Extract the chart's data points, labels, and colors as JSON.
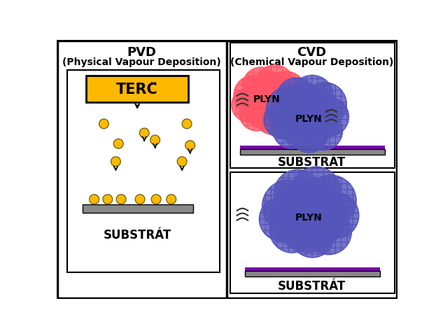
{
  "pvd_title": "PVD",
  "pvd_subtitle": "(Physical Vapour Deposition)",
  "cvd_title": "CVD",
  "cvd_subtitle": "(Chemical Vapour Deposition)",
  "terc_label": "TERČ",
  "substrat_label": "SUBSTRÁT",
  "plyn_label": "PLYN",
  "terc_color": "#FFB800",
  "particle_color": "#FFB800",
  "substrate_gray": "#888888",
  "substrate_purple": "#7700AA",
  "red_cloud_color": "#FF5566",
  "blue_cloud_color": "#5555BB",
  "background": "#FFFFFF",
  "fig_width": 6.33,
  "fig_height": 4.81,
  "dpi": 100
}
